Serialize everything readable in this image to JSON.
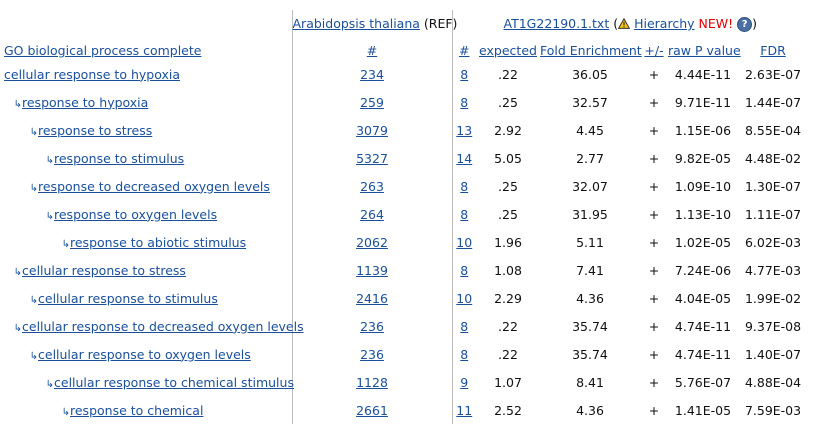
{
  "header": {
    "ref_organism": "Arabidopsis thaliana",
    "ref_suffix": "(REF)",
    "upload_file": "AT1G22190.1.txt",
    "open_paren": "(",
    "hierarchy_label": "Hierarchy",
    "new_label": "NEW!",
    "close_paren": ")",
    "help_glyph": "?",
    "warn_icon": "warning-triangle-icon"
  },
  "columns": {
    "term": "GO biological process complete",
    "ref_count": "#",
    "count": "#",
    "expected": "expected",
    "fold": "Fold Enrichment",
    "sign": "+/-",
    "raw_p": "raw P value",
    "fdr": "FDR"
  },
  "rows": [
    {
      "level": 0,
      "term": "cellular response to hypoxia",
      "ref": "234",
      "count": "8",
      "expected": ".22",
      "fold": "36.05",
      "sign": "+",
      "raw_p": "4.44E-11",
      "fdr": "2.63E-07"
    },
    {
      "level": 1,
      "term": "response to hypoxia",
      "ref": "259",
      "count": "8",
      "expected": ".25",
      "fold": "32.57",
      "sign": "+",
      "raw_p": "9.71E-11",
      "fdr": "1.44E-07"
    },
    {
      "level": 2,
      "term": "response to stress",
      "ref": "3079",
      "count": "13",
      "expected": "2.92",
      "fold": "4.45",
      "sign": "+",
      "raw_p": "1.15E-06",
      "fdr": "8.55E-04"
    },
    {
      "level": 3,
      "term": "response to stimulus",
      "ref": "5327",
      "count": "14",
      "expected": "5.05",
      "fold": "2.77",
      "sign": "+",
      "raw_p": "9.82E-05",
      "fdr": "4.48E-02"
    },
    {
      "level": 2,
      "term": "response to decreased oxygen levels",
      "ref": "263",
      "count": "8",
      "expected": ".25",
      "fold": "32.07",
      "sign": "+",
      "raw_p": "1.09E-10",
      "fdr": "1.30E-07"
    },
    {
      "level": 3,
      "term": "response to oxygen levels",
      "ref": "264",
      "count": "8",
      "expected": ".25",
      "fold": "31.95",
      "sign": "+",
      "raw_p": "1.13E-10",
      "fdr": "1.11E-07"
    },
    {
      "level": 4,
      "term": "response to abiotic stimulus",
      "ref": "2062",
      "count": "10",
      "expected": "1.96",
      "fold": "5.11",
      "sign": "+",
      "raw_p": "1.02E-05",
      "fdr": "6.02E-03"
    },
    {
      "level": 1,
      "term": "cellular response to stress",
      "ref": "1139",
      "count": "8",
      "expected": "1.08",
      "fold": "7.41",
      "sign": "+",
      "raw_p": "7.24E-06",
      "fdr": "4.77E-03"
    },
    {
      "level": 2,
      "term": "cellular response to stimulus",
      "ref": "2416",
      "count": "10",
      "expected": "2.29",
      "fold": "4.36",
      "sign": "+",
      "raw_p": "4.04E-05",
      "fdr": "1.99E-02"
    },
    {
      "level": 1,
      "term": "cellular response to decreased oxygen levels",
      "ref": "236",
      "count": "8",
      "expected": ".22",
      "fold": "35.74",
      "sign": "+",
      "raw_p": "4.74E-11",
      "fdr": "9.37E-08"
    },
    {
      "level": 2,
      "term": "cellular response to oxygen levels",
      "ref": "236",
      "count": "8",
      "expected": ".22",
      "fold": "35.74",
      "sign": "+",
      "raw_p": "4.74E-11",
      "fdr": "1.40E-07"
    },
    {
      "level": 3,
      "term": "cellular response to chemical stimulus",
      "ref": "1128",
      "count": "9",
      "expected": "1.07",
      "fold": "8.41",
      "sign": "+",
      "raw_p": "5.76E-07",
      "fdr": "4.88E-04"
    },
    {
      "level": 4,
      "term": "response to chemical",
      "ref": "2661",
      "count": "11",
      "expected": "2.52",
      "fold": "4.36",
      "sign": "+",
      "raw_p": "1.41E-05",
      "fdr": "7.59E-03"
    }
  ],
  "tree_arrow_glyph": "↳"
}
